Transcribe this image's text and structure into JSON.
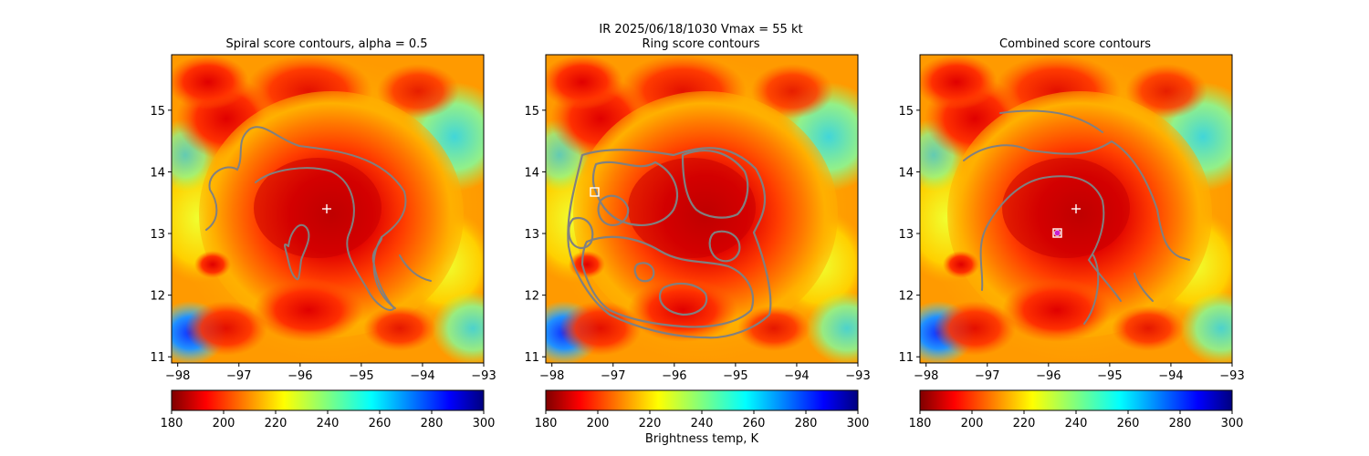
{
  "figure": {
    "suptitle_line1": "IR  2025/06/18/1030    Vmax = 55 kt"
  },
  "chart_data": [
    {
      "type": "heatmap",
      "title": "Spiral score contours, alpha =  0.5",
      "x_ticks": [
        -98,
        -97,
        -96,
        -95,
        -94,
        -93
      ],
      "y_ticks": [
        11,
        12,
        13,
        14,
        15
      ],
      "xlim": [
        -98.1,
        -93.0
      ],
      "ylim": [
        10.9,
        15.9
      ],
      "overlays": [
        {
          "kind": "plus",
          "lon": -95.55,
          "lat": 13.4,
          "color": "#ffffff"
        }
      ],
      "colorbar": {
        "ticks": [
          180,
          200,
          220,
          240,
          260,
          280,
          300
        ],
        "label": "",
        "cmap": "jet_r",
        "range": [
          180,
          300
        ]
      }
    },
    {
      "type": "heatmap",
      "title": "Ring score contours",
      "x_ticks": [
        -98,
        -97,
        -96,
        -95,
        -94,
        -93
      ],
      "y_ticks": [
        11,
        12,
        13,
        14,
        15
      ],
      "xlim": [
        -98.1,
        -93.0
      ],
      "ylim": [
        10.9,
        15.9
      ],
      "overlays": [
        {
          "kind": "square",
          "lon": -97.35,
          "lat": 13.68,
          "color": "#ffffff"
        }
      ],
      "colorbar": {
        "ticks": [
          180,
          200,
          220,
          240,
          260,
          280,
          300
        ],
        "label": "Brightness temp, K",
        "cmap": "jet_r",
        "range": [
          180,
          300
        ]
      }
    },
    {
      "type": "heatmap",
      "title": "Combined score contours",
      "x_ticks": [
        -98,
        -97,
        -96,
        -95,
        -94,
        -93
      ],
      "y_ticks": [
        11,
        12,
        13,
        14,
        15
      ],
      "xlim": [
        -98.1,
        -93.0
      ],
      "ylim": [
        10.9,
        15.9
      ],
      "overlays": [
        {
          "kind": "plus",
          "lon": -95.55,
          "lat": 13.4,
          "color": "#ffffff"
        },
        {
          "kind": "square",
          "lon": -95.85,
          "lat": 13.0,
          "color": "#ffffff"
        },
        {
          "kind": "dot",
          "lon": -95.85,
          "lat": 13.0,
          "color": "#c81ed2"
        }
      ],
      "colorbar": {
        "ticks": [
          180,
          200,
          220,
          240,
          260,
          280,
          300
        ],
        "label": "",
        "cmap": "jet_r",
        "range": [
          180,
          300
        ]
      }
    }
  ],
  "colors": {
    "contour": "#808080",
    "center_marker": "#ffffff",
    "best_marker": "#c81ed2"
  }
}
